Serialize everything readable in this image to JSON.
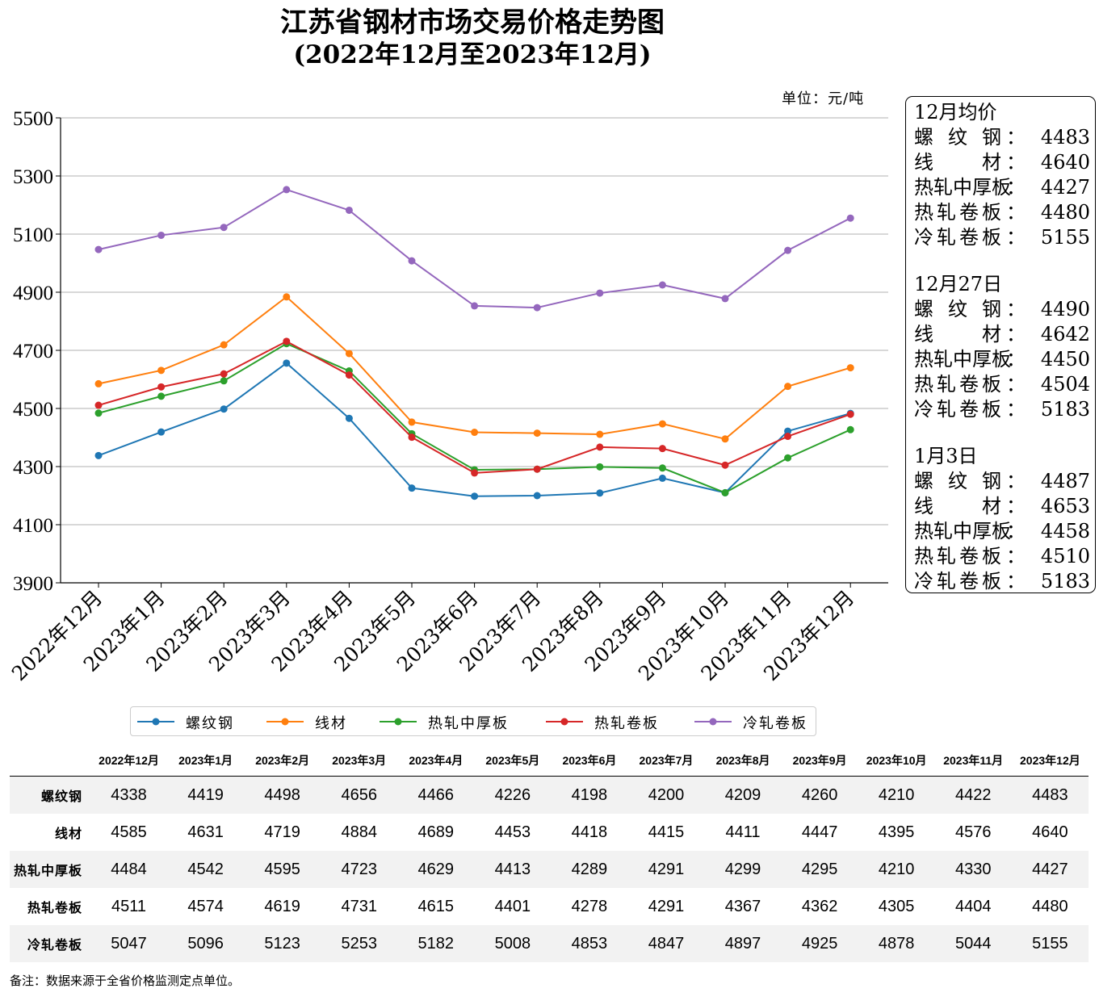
{
  "title": "江苏省钢材市场交易价格走势图",
  "subtitle": "(2022年12月至2023年12月)",
  "unit_label": "单位：元/吨",
  "chart_data": {
    "type": "line",
    "categories": [
      "2022年12月",
      "2023年1月",
      "2023年2月",
      "2023年3月",
      "2023年4月",
      "2023年5月",
      "2023年6月",
      "2023年7月",
      "2023年8月",
      "2023年9月",
      "2023年10月",
      "2023年11月",
      "2023年12月"
    ],
    "ylim": [
      3900,
      5500
    ],
    "yticks": [
      3900,
      4100,
      4300,
      4500,
      4700,
      4900,
      5100,
      5300,
      5500
    ],
    "grid": "horizontal",
    "legend_position": "bottom",
    "series": [
      {
        "name": "螺纹钢",
        "color": "#1f77b4",
        "values": [
          4338,
          4419,
          4498,
          4656,
          4466,
          4226,
          4198,
          4200,
          4209,
          4260,
          4210,
          4422,
          4483
        ]
      },
      {
        "name": "线材",
        "color": "#ff7f0e",
        "values": [
          4585,
          4631,
          4719,
          4884,
          4689,
          4453,
          4418,
          4415,
          4411,
          4447,
          4395,
          4576,
          4640
        ]
      },
      {
        "name": "热轧中厚板",
        "color": "#2ca02c",
        "values": [
          4484,
          4542,
          4595,
          4723,
          4629,
          4413,
          4289,
          4291,
          4299,
          4295,
          4210,
          4330,
          4427
        ]
      },
      {
        "name": "热轧卷板",
        "color": "#d62728",
        "values": [
          4511,
          4574,
          4619,
          4731,
          4615,
          4401,
          4278,
          4291,
          4367,
          4362,
          4305,
          4404,
          4480
        ]
      },
      {
        "name": "冷轧卷板",
        "color": "#9467bd",
        "values": [
          5047,
          5096,
          5123,
          5253,
          5182,
          5008,
          4853,
          4847,
          4897,
          4925,
          4878,
          5044,
          5155
        ]
      }
    ]
  },
  "legend": [
    {
      "label": "螺纹钢",
      "color": "#1f77b4"
    },
    {
      "label": "线材",
      "color": "#ff7f0e"
    },
    {
      "label": "热轧中厚板",
      "color": "#2ca02c"
    },
    {
      "label": "热轧卷板",
      "color": "#d62728"
    },
    {
      "label": "冷轧卷板",
      "color": "#9467bd"
    }
  ],
  "info_box": {
    "sections": [
      {
        "heading": "12月均价",
        "rows": [
          {
            "name": "螺纹钢",
            "value": "4483"
          },
          {
            "name": "线材",
            "value": "4640"
          },
          {
            "name": "热轧中厚板",
            "value": "4427"
          },
          {
            "name": "热轧卷板",
            "value": "4480"
          },
          {
            "name": "冷轧卷板",
            "value": "5155"
          }
        ]
      },
      {
        "heading": "12月27日",
        "rows": [
          {
            "name": "螺纹钢",
            "value": "4490"
          },
          {
            "name": "线材",
            "value": "4642"
          },
          {
            "name": "热轧中厚板",
            "value": "4450"
          },
          {
            "name": "热轧卷板",
            "value": "4504"
          },
          {
            "name": "冷轧卷板",
            "value": "5183"
          }
        ]
      },
      {
        "heading": "1月3日",
        "rows": [
          {
            "name": "螺纹钢",
            "value": "4487"
          },
          {
            "name": "线材",
            "value": "4653"
          },
          {
            "name": "热轧中厚板",
            "value": "4458"
          },
          {
            "name": "热轧卷板",
            "value": "4510"
          },
          {
            "name": "冷轧卷板",
            "value": "5183"
          }
        ]
      }
    ]
  },
  "table": {
    "headers": [
      "2022年12月",
      "2023年1月",
      "2023年2月",
      "2023年3月",
      "2023年4月",
      "2023年5月",
      "2023年6月",
      "2023年7月",
      "2023年8月",
      "2023年9月",
      "2023年10月",
      "2023年11月",
      "2023年12月"
    ],
    "rows": [
      {
        "name": "螺纹钢",
        "values": [
          "4338",
          "4419",
          "4498",
          "4656",
          "4466",
          "4226",
          "4198",
          "4200",
          "4209",
          "4260",
          "4210",
          "4422",
          "4483"
        ]
      },
      {
        "name": "线材",
        "values": [
          "4585",
          "4631",
          "4719",
          "4884",
          "4689",
          "4453",
          "4418",
          "4415",
          "4411",
          "4447",
          "4395",
          "4576",
          "4640"
        ]
      },
      {
        "name": "热轧中厚板",
        "values": [
          "4484",
          "4542",
          "4595",
          "4723",
          "4629",
          "4413",
          "4289",
          "4291",
          "4299",
          "4295",
          "4210",
          "4330",
          "4427"
        ]
      },
      {
        "name": "热轧卷板",
        "values": [
          "4511",
          "4574",
          "4619",
          "4731",
          "4615",
          "4401",
          "4278",
          "4291",
          "4367",
          "4362",
          "4305",
          "4404",
          "4480"
        ]
      },
      {
        "name": "冷轧卷板",
        "values": [
          "5047",
          "5096",
          "5123",
          "5253",
          "5182",
          "5008",
          "4853",
          "4847",
          "4897",
          "4925",
          "4878",
          "5044",
          "5155"
        ]
      }
    ]
  },
  "note": "备注：数据来源于全省价格监测定点单位。"
}
